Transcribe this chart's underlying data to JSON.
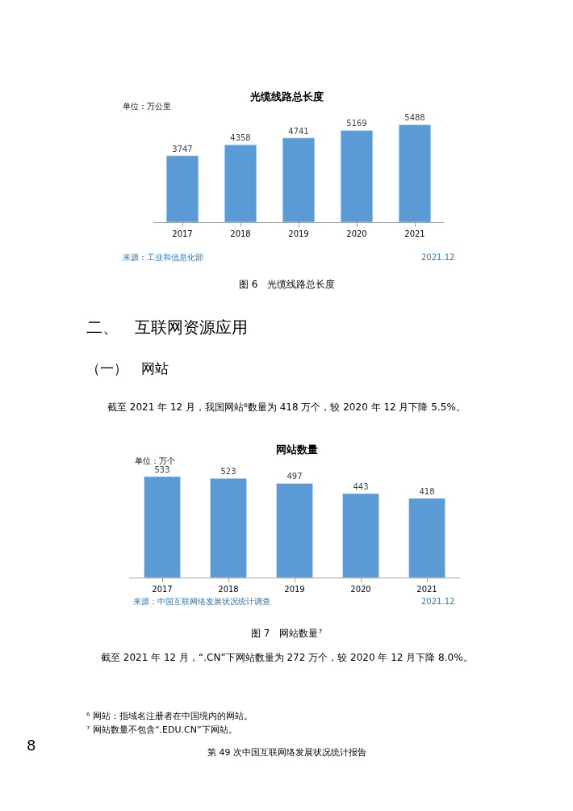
{
  "chart_data": [
    {
      "type": "bar",
      "title": "光缆线路总长度",
      "categories": [
        "2017",
        "2018",
        "2019",
        "2020",
        "2021"
      ],
      "values": [
        3747,
        4358,
        4741,
        5169,
        5488
      ],
      "color": "#5b9bd5",
      "data_labels": true,
      "annotations": [
        "单位：万公里",
        "来源：工业和信息化部",
        "2021.12",
        "图 6　光缆线路总长度"
      ]
    },
    {
      "type": "bar",
      "title": "网站数量",
      "categories": [
        "2017",
        "2018",
        "2019",
        "2020",
        "2021"
      ],
      "values": [
        533,
        523,
        497,
        443,
        418
      ],
      "color": "#5b9bd5",
      "data_labels": true,
      "annotations": [
        "单位：万个",
        "来源：中国互联网络发展状况统计调查",
        "2021.12",
        "图 7　网站数量⁷",
        "二、　互联网资源应用",
        "（一）　网站",
        "截至 2021 年 12 月，我国网站⁶数量为 418 万个，较 2020 年 12 月下降 5.5%。",
        "截至 2021 年 12 月，“.CN”下网站数量为 272 万个，较 2020 年 12 月下降 8.0%。",
        "⁶ 网站：指域名注册者在中国境内的网站。",
        "⁷ 网站数量不包含“.EDU.CN”下网站。",
        "8",
        "第 49 次中国互联网络发展状况统计报告"
      ]
    }
  ]
}
